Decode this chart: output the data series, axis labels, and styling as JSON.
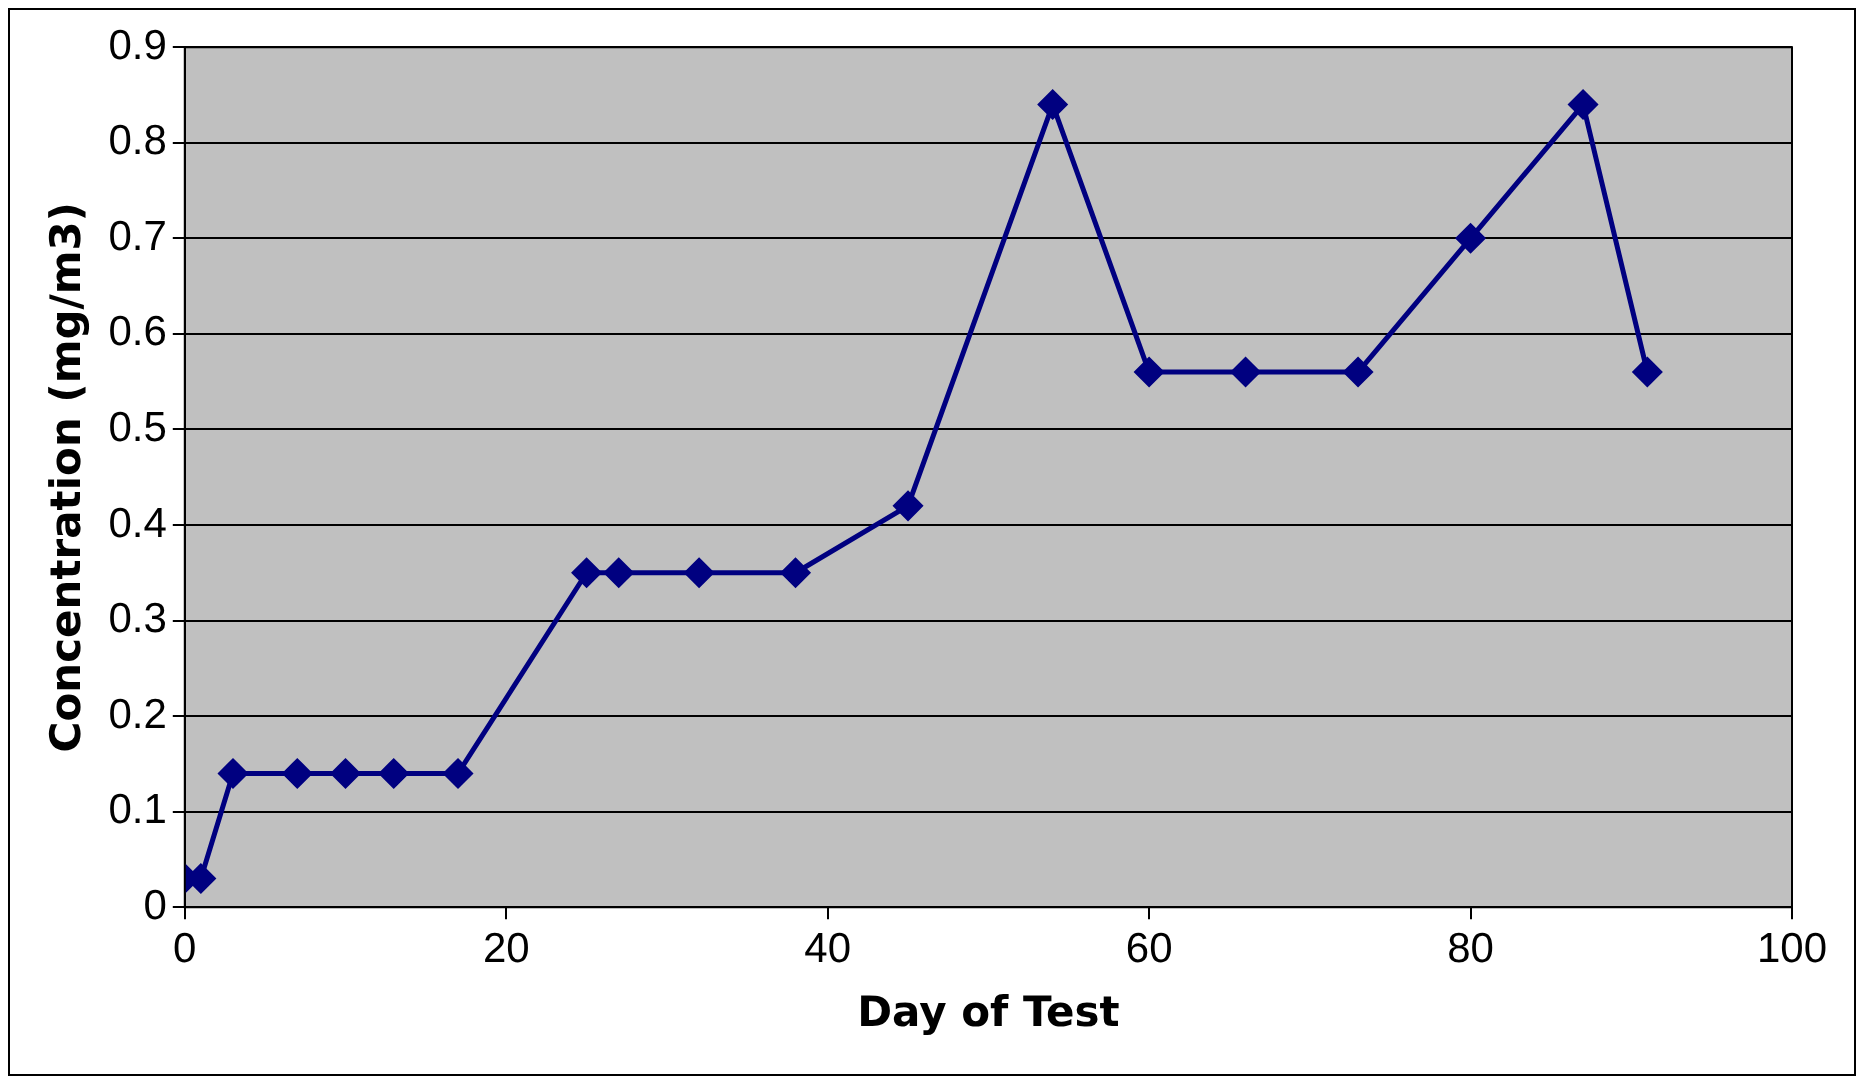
{
  "chart_data": {
    "type": "line",
    "xlabel": "Day of Test",
    "ylabel": "Concentration (mg/m3)",
    "x": [
      0,
      1,
      3,
      7,
      10,
      13,
      17,
      25,
      27,
      32,
      38,
      45,
      54,
      60,
      66,
      73,
      80,
      87,
      91
    ],
    "series": [
      {
        "color": "#000080",
        "values": [
          0.03,
          0.03,
          0.14,
          0.14,
          0.14,
          0.14,
          0.14,
          0.35,
          0.35,
          0.35,
          0.35,
          0.42,
          0.84,
          0.56,
          0.56,
          0.56,
          0.7,
          0.84,
          0.56
        ]
      }
    ],
    "xlim": [
      0,
      100
    ],
    "xticks": [
      0,
      20,
      40,
      60,
      80,
      100
    ],
    "ylim": [
      0,
      0.9
    ],
    "yticks": [
      0,
      0.1,
      0.2,
      0.3,
      0.4,
      0.5,
      0.6,
      0.7,
      0.8,
      0.9
    ],
    "grid": "y",
    "marker": "diamond",
    "line_style": "solid",
    "legend": false
  }
}
